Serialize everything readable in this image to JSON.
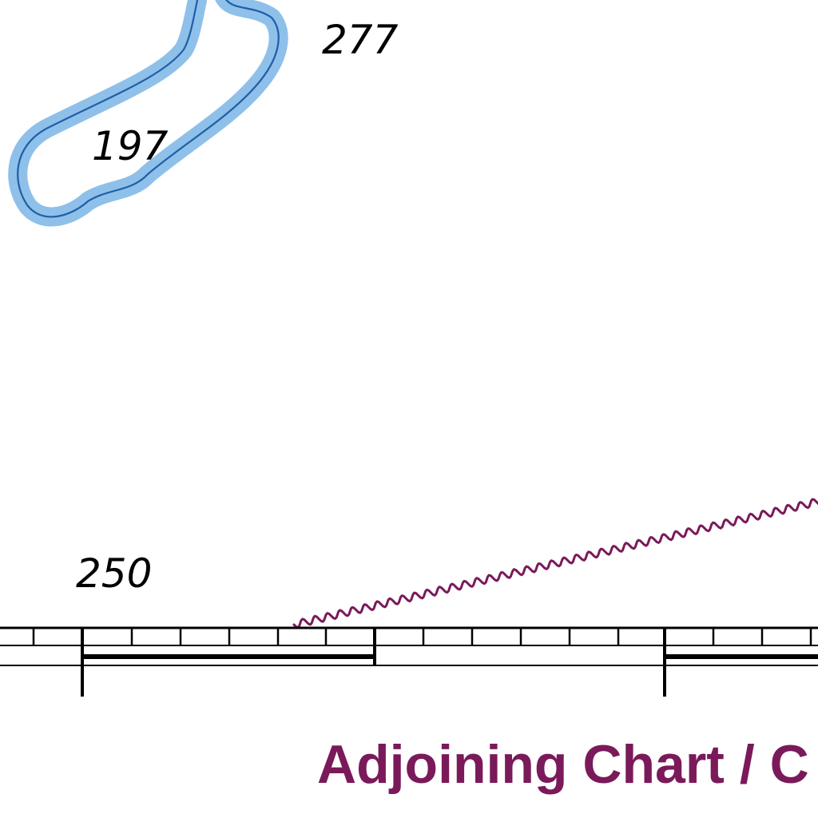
{
  "soundings": {
    "shoal_outside": "277",
    "shoal_inside": "197",
    "lower_left": "250"
  },
  "caption": {
    "text": "Adjoining Chart / C"
  },
  "colors": {
    "water_tint": "#8ec0ea",
    "depth_contour": "#1f5fa6",
    "magenta": "#7a1a5a",
    "border": "#000000",
    "background": "#ffffff"
  }
}
